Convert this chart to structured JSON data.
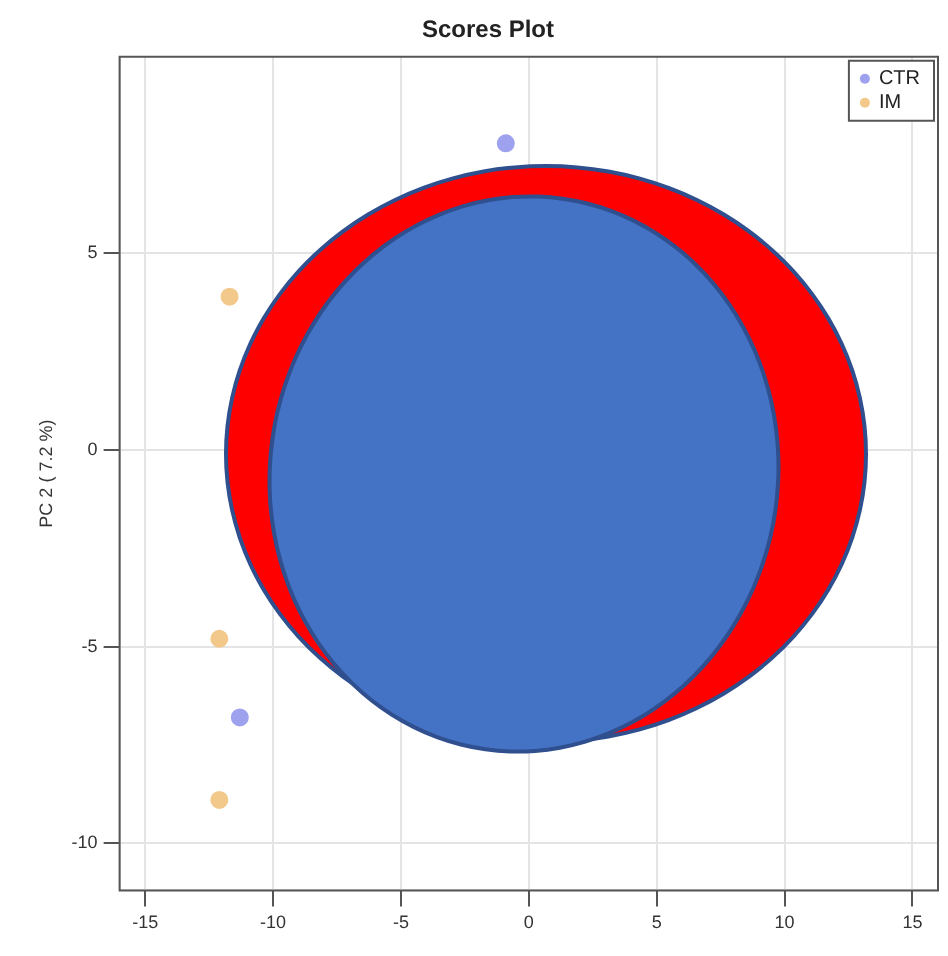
{
  "chart_data": {
    "type": "scatter",
    "title": "Scores Plot",
    "ylabel": "PC 2 ( 7.2 %)",
    "series": [
      {
        "name": "CTR",
        "color": "#9ea2ee",
        "x": [
          -0.9,
          -11.3
        ],
        "values": [
          7.8,
          -6.8
        ]
      },
      {
        "name": "IM",
        "color": "#f2c98a",
        "x": [
          -11.7,
          -12.1,
          -12.1
        ],
        "values": [
          3.9,
          -4.8,
          -8.9
        ]
      }
    ],
    "xlim": [
      -16,
      16
    ],
    "xticks": [
      -15,
      -10,
      -5,
      0,
      5,
      10,
      15
    ],
    "ylim": [
      -11.2,
      10
    ],
    "yticks": [
      -10,
      -5,
      0,
      5
    ],
    "grid": true,
    "legend": "top right",
    "marker": "circle"
  }
}
